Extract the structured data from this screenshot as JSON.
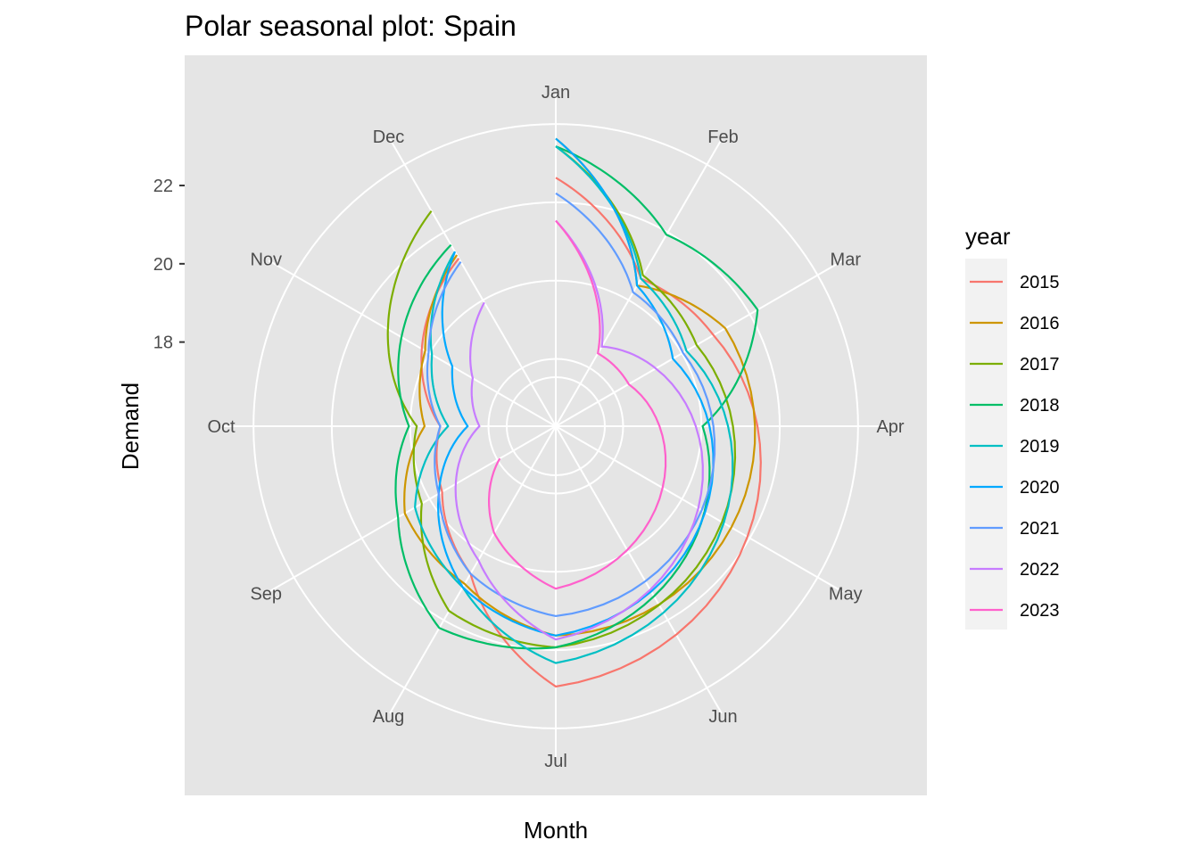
{
  "chart_data": {
    "type": "line",
    "coordinate_system": "polar",
    "title": "Polar seasonal plot: Spain",
    "xlabel": "Month",
    "ylabel": "Demand",
    "categories": [
      "Jan",
      "Feb",
      "Mar",
      "Apr",
      "May",
      "Jun",
      "Jul",
      "Aug",
      "Sep",
      "Oct",
      "Nov",
      "Dec"
    ],
    "y_ticks": [
      18,
      20,
      22
    ],
    "ylim": [
      15.85,
      23.55
    ],
    "grid": true,
    "legend": {
      "title": "year",
      "placement": "right"
    },
    "series": [
      {
        "name": "2015",
        "color": "#F8766D",
        "values": [
          22.2,
          20.2,
          20.5,
          null,
          null,
          null,
          22.5,
          20.2,
          19.2,
          18.8,
          19.8,
          20.8
        ]
      },
      {
        "name": "2016",
        "color": "#CD9600",
        "values": [
          23.2,
          20.0,
          20.85,
          null,
          null,
          null,
          21.2,
          20.5,
          20.3,
          19.2,
          19.7,
          20.9
        ]
      },
      {
        "name": "2017",
        "color": "#7CAE00",
        "values": [
          23.0,
          20.3,
          20.0,
          null,
          null,
          null,
          21.5,
          21.3,
          19.8,
          19.4,
          20.8,
          22.2
        ]
      },
      {
        "name": "2018",
        "color": "#00BE67",
        "values": [
          23.0,
          21.5,
          21.8,
          19.6,
          null,
          null,
          21.5,
          21.8,
          20.5,
          19.6,
          20.4,
          21.2
        ]
      },
      {
        "name": "2019",
        "color": "#00BFC4",
        "values": [
          23.0,
          20.2,
          19.7,
          null,
          null,
          null,
          21.9,
          20.6,
          20.0,
          18.6,
          19.5,
          21.0
        ]
      },
      {
        "name": "2020",
        "color": "#00A9FF",
        "values": [
          23.2,
          20.0,
          19.3,
          null,
          null,
          null,
          21.2,
          20.6,
          19.3,
          18.1,
          18.9,
          21.0
        ]
      },
      {
        "name": "2021",
        "color": "#619CFF",
        "values": [
          21.8,
          19.8,
          19.6,
          null,
          null,
          null,
          20.7,
          20.2,
          19.3,
          18.8,
          19.6,
          20.7
        ]
      },
      {
        "name": "2022",
        "color": "#C77CFF",
        "values": [
          21.1,
          18.2,
          18.8,
          null,
          null,
          null,
          21.3,
          19.8,
          18.8,
          17.8,
          18.3,
          19.5
        ]
      },
      {
        "name": "2023",
        "color": "#FF61CC",
        "values": [
          21.1,
          18.0,
          18.0,
          null,
          null,
          null,
          20.0,
          19.0,
          17.5,
          null,
          null,
          null
        ]
      }
    ]
  }
}
